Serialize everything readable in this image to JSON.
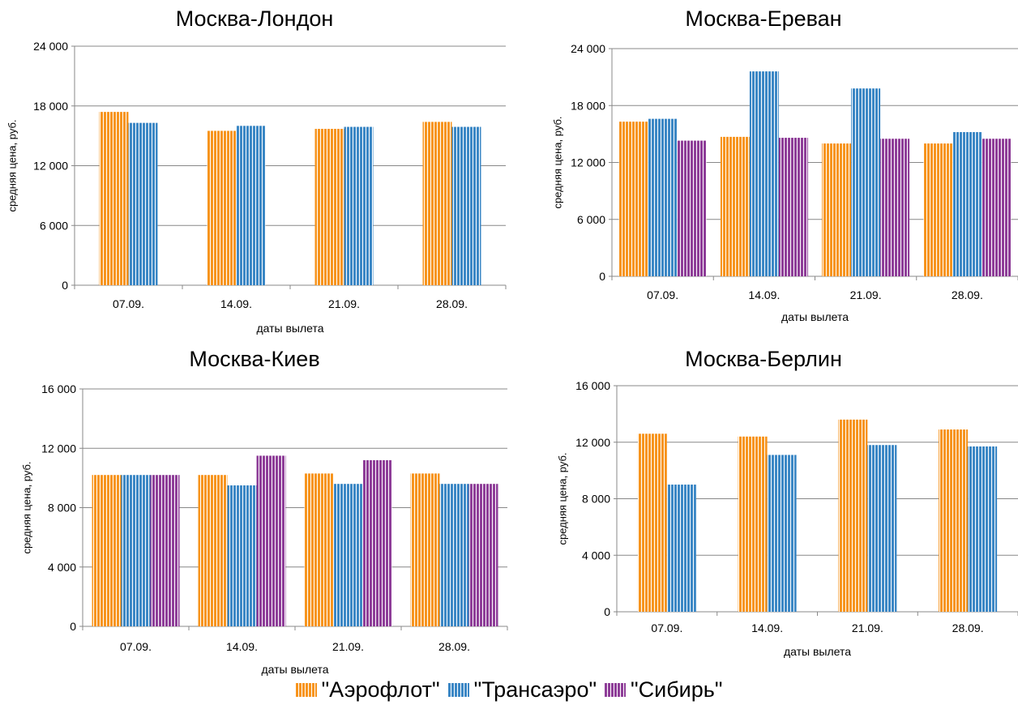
{
  "colors": {
    "aeroflot": "#F7941D",
    "transaero": "#3B87C5",
    "sibir": "#8E3D98",
    "grid": "#888888",
    "axis": "#888888"
  },
  "legend": {
    "items": [
      {
        "key": "aeroflot",
        "label": "\"Аэрофлот\""
      },
      {
        "key": "transaero",
        "label": "\"Трансаэро\""
      },
      {
        "key": "sibir",
        "label": "\"Сибирь\""
      }
    ]
  },
  "chart_data": [
    {
      "type": "bar",
      "title": "Москва-Лондон",
      "xlabel": "даты вылета",
      "ylabel": "средняя цена, руб.",
      "categories": [
        "07.09.",
        "14.09.",
        "21.09.",
        "28.09."
      ],
      "ylim": [
        0,
        24000
      ],
      "yticks": [
        0,
        6000,
        12000,
        18000,
        24000
      ],
      "ytick_labels": [
        "0",
        "6 000",
        "12 000",
        "18 000",
        "24 000"
      ],
      "series": [
        {
          "key": "aeroflot",
          "name": "\"Аэрофлот\"",
          "values": [
            17400,
            15500,
            15700,
            16400
          ]
        },
        {
          "key": "transaero",
          "name": "\"Трансаэро\"",
          "values": [
            16300,
            16000,
            15900,
            15900
          ]
        }
      ]
    },
    {
      "type": "bar",
      "title": "Москва-Ереван",
      "xlabel": "даты вылета",
      "ylabel": "средняя цена, руб.",
      "categories": [
        "07.09.",
        "14.09.",
        "21.09.",
        "28.09."
      ],
      "ylim": [
        0,
        24000
      ],
      "yticks": [
        0,
        6000,
        12000,
        18000,
        24000
      ],
      "ytick_labels": [
        "0",
        "6 000",
        "12 000",
        "18 000",
        "24 000"
      ],
      "series": [
        {
          "key": "aeroflot",
          "name": "\"Аэрофлот\"",
          "values": [
            16300,
            14700,
            14000,
            14000
          ]
        },
        {
          "key": "transaero",
          "name": "\"Трансаэро\"",
          "values": [
            16600,
            21600,
            19800,
            15200
          ]
        },
        {
          "key": "sibir",
          "name": "\"Сибирь\"",
          "values": [
            14300,
            14600,
            14500,
            14500
          ]
        }
      ]
    },
    {
      "type": "bar",
      "title": "Москва-Киев",
      "xlabel": "даты вылета",
      "ylabel": "средняя цена, руб.",
      "categories": [
        "07.09.",
        "14.09.",
        "21.09.",
        "28.09."
      ],
      "ylim": [
        0,
        16000
      ],
      "yticks": [
        0,
        4000,
        8000,
        12000,
        16000
      ],
      "ytick_labels": [
        "0",
        "4 000",
        "8 000",
        "12 000",
        "16 000"
      ],
      "series": [
        {
          "key": "aeroflot",
          "name": "\"Аэрофлот\"",
          "values": [
            10200,
            10200,
            10300,
            10300
          ]
        },
        {
          "key": "transaero",
          "name": "\"Трансаэро\"",
          "values": [
            10200,
            9500,
            9600,
            9600
          ]
        },
        {
          "key": "sibir",
          "name": "\"Сибирь\"",
          "values": [
            10200,
            11500,
            11200,
            9600
          ]
        }
      ]
    },
    {
      "type": "bar",
      "title": "Москва-Берлин",
      "xlabel": "даты вылета",
      "ylabel": "средняя цена, руб.",
      "categories": [
        "07.09.",
        "14.09.",
        "21.09.",
        "28.09."
      ],
      "ylim": [
        0,
        16000
      ],
      "yticks": [
        0,
        4000,
        8000,
        12000,
        16000
      ],
      "ytick_labels": [
        "0",
        "4 000",
        "8 000",
        "12 000",
        "16 000"
      ],
      "series": [
        {
          "key": "aeroflot",
          "name": "\"Аэрофлот\"",
          "values": [
            12600,
            12400,
            13600,
            12900
          ]
        },
        {
          "key": "transaero",
          "name": "\"Трансаэро\"",
          "values": [
            9000,
            11100,
            11800,
            11700
          ]
        }
      ]
    }
  ]
}
